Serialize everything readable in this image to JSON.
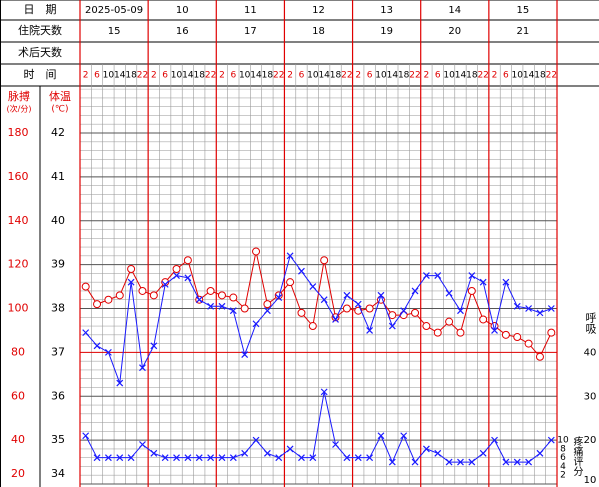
{
  "header": {
    "date": "日　期",
    "hospital_day": "住院天数",
    "post_op_day": "术后天数",
    "time": "时　间"
  },
  "chart_data": {
    "type": "line",
    "days": [
      "2025-05-09",
      "10",
      "11",
      "12",
      "13",
      "14",
      "15"
    ],
    "hospital_days": [
      15,
      16,
      17,
      18,
      19,
      20,
      21
    ],
    "times": [
      2,
      6,
      10,
      14,
      18,
      22
    ],
    "temp_title": "体温",
    "temp_unit": "(℃)",
    "pulse_title": "脉搏",
    "pulse_unit": "(次/分)",
    "resp_title": "呼吸",
    "pain_title": "疼痛评分",
    "ylim": [
      34,
      42
    ],
    "yticks": [
      34,
      35,
      36,
      37,
      38,
      39,
      40,
      41,
      42
    ],
    "y2lim": [
      20,
      180
    ],
    "y2ticks": [
      20,
      40,
      60,
      80,
      100,
      120,
      140,
      160,
      180
    ],
    "resp_lim": [
      10,
      90
    ],
    "resp_ticks": [
      10,
      20,
      30,
      40
    ],
    "pain_lim": [
      0,
      10
    ],
    "pain_ticks": [
      2,
      4,
      6,
      8,
      10
    ],
    "series": [
      {
        "name": "体温",
        "color": "#e00000",
        "marker": "circle",
        "axis": "y",
        "values": [
          38.5,
          38.1,
          38.2,
          38.3,
          38.9,
          38.4,
          38.3,
          38.6,
          38.9,
          39.1,
          38.2,
          38.4,
          38.3,
          38.25,
          38.0,
          39.3,
          38.1,
          38.3,
          38.6,
          37.9,
          37.6,
          39.1,
          37.8,
          38.0,
          37.95,
          38.0,
          38.2,
          37.85,
          37.85,
          37.9,
          37.6,
          37.45,
          37.7,
          37.45,
          38.4,
          37.75,
          37.6,
          37.4,
          37.35,
          37.2,
          36.9,
          37.45
        ]
      },
      {
        "name": "脉搏",
        "color": "#1a1aff",
        "marker": "cross",
        "axis": "y2",
        "values": [
          89,
          83,
          80,
          66,
          112,
          73,
          83,
          111,
          115,
          114,
          104,
          101,
          101,
          99,
          79,
          93,
          99,
          105,
          124,
          117,
          110,
          104,
          95,
          106,
          102,
          90,
          106,
          92,
          99,
          108,
          115,
          115,
          107,
          99,
          115,
          112,
          90,
          112,
          101,
          100,
          98,
          100
        ]
      },
      {
        "name": "呼吸",
        "color": "#1a1aff",
        "marker": "cross",
        "axis": "resp",
        "values": [
          21,
          16,
          16,
          16,
          16,
          19,
          17,
          16,
          16,
          16,
          16,
          16,
          16,
          16,
          17,
          20,
          17,
          16,
          18,
          16,
          16,
          31,
          19,
          16,
          16,
          16,
          21,
          15,
          21,
          15,
          18,
          17,
          15,
          15,
          15,
          17,
          20,
          15,
          15,
          15,
          17,
          20
        ]
      }
    ]
  }
}
